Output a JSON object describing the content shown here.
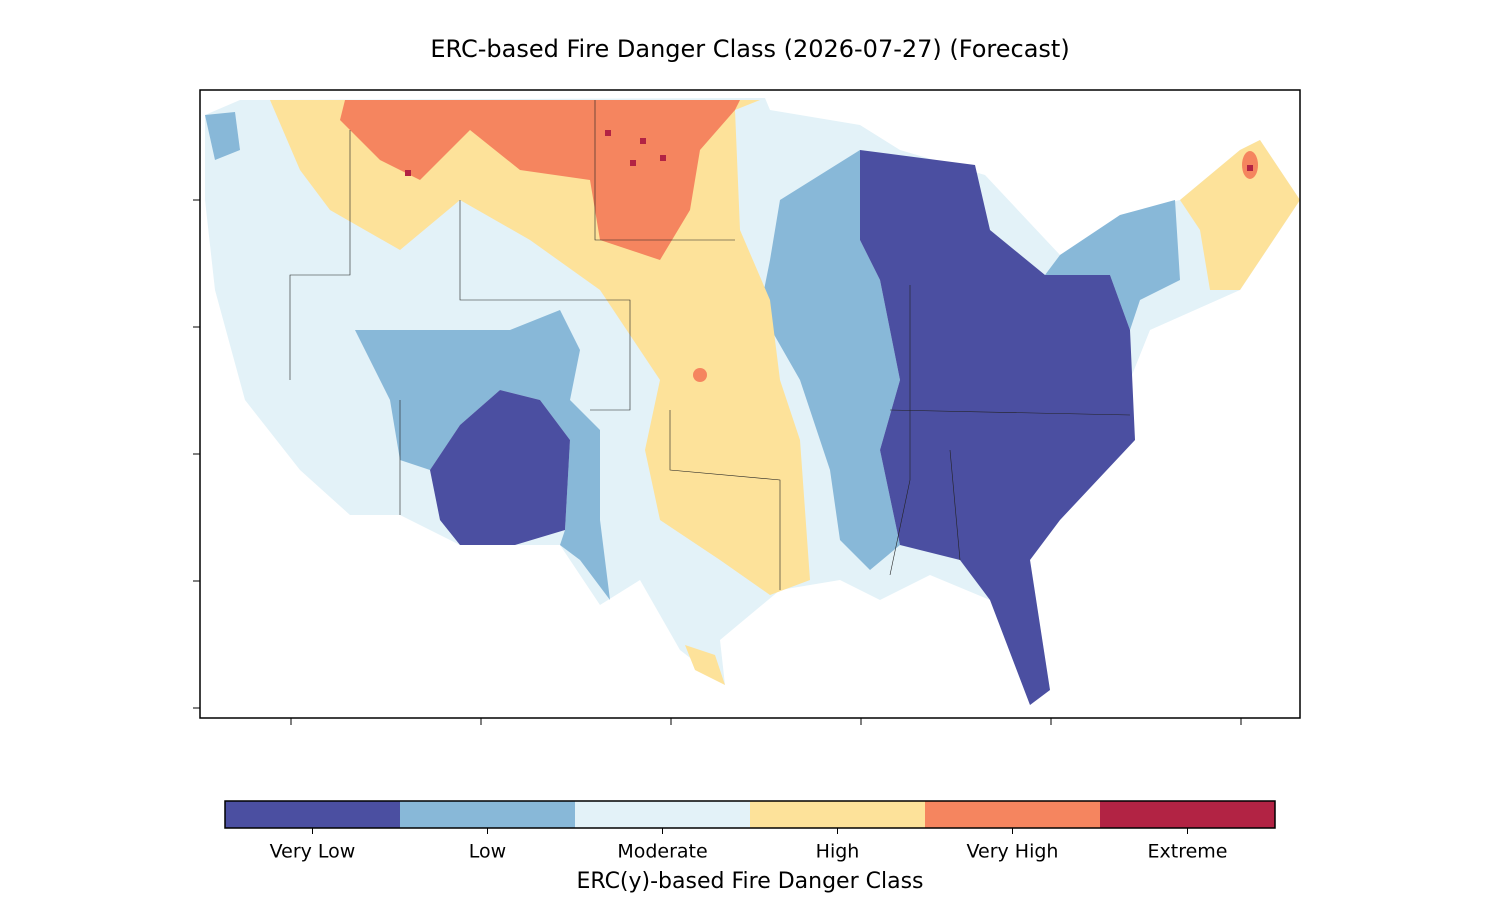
{
  "title": "ERC-based Fire Danger Class (2026-07-27) (Forecast)",
  "colorbar": {
    "label": "ERC(y)-based Fire Danger Class",
    "classes": [
      {
        "name": "Very Low",
        "color": "#4b4fa1"
      },
      {
        "name": "Low",
        "color": "#88b8d8"
      },
      {
        "name": "Moderate",
        "color": "#e3f2f8"
      },
      {
        "name": "High",
        "color": "#fde29a"
      },
      {
        "name": "Very High",
        "color": "#f5855f"
      },
      {
        "name": "Extreme",
        "color": "#b22344"
      }
    ]
  }
}
